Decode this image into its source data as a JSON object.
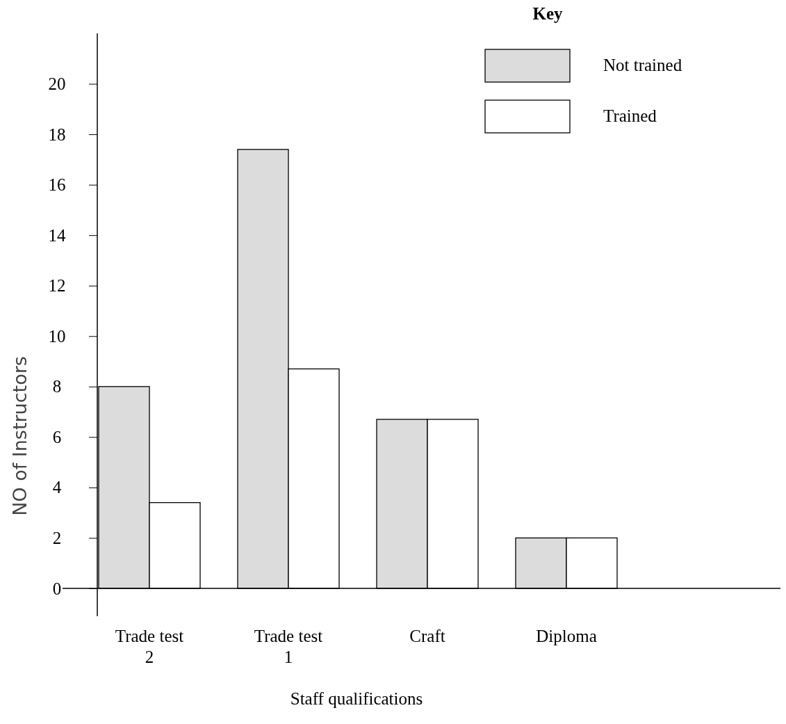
{
  "chart_data": {
    "type": "bar",
    "xlabel": "Staff qualifications",
    "ylabel": "NO of Instructors",
    "legend_title": "Key",
    "categories": [
      "Trade test 2",
      "Trade test 1",
      "Craft",
      "Diploma"
    ],
    "series": [
      {
        "name": "Not trained",
        "color": "#dcdcdc",
        "values": [
          8,
          17.4,
          6.7,
          2
        ]
      },
      {
        "name": "Trained",
        "color": "#ffffff",
        "values": [
          3.4,
          8.7,
          6.7,
          2
        ]
      }
    ],
    "ylim": [
      0,
      22
    ],
    "yticks": [
      0,
      2,
      4,
      6,
      8,
      10,
      12,
      14,
      16,
      18,
      20
    ],
    "grid": false,
    "legend": "top right"
  }
}
